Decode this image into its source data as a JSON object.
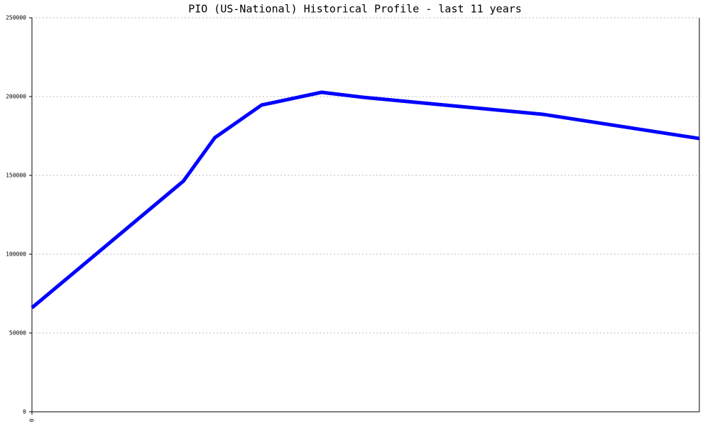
{
  "chart_data": {
    "type": "line",
    "title": "PIO (US-National) Historical Profile - last 11 years",
    "x": [
      0,
      22.7,
      27.4,
      34.4,
      43.4,
      49.7,
      76.6,
      100
    ],
    "series": [
      {
        "color": "#0000ff",
        "values": [
          66000,
          146400,
          173900,
          194600,
          202700,
          199500,
          188700,
          173400
        ]
      }
    ],
    "xlim": [
      0,
      100
    ],
    "xticks": [
      0
    ],
    "ylim": [
      0,
      250000
    ],
    "yticks": [
      0,
      50000,
      100000,
      150000,
      200000,
      250000
    ],
    "grid": true
  }
}
